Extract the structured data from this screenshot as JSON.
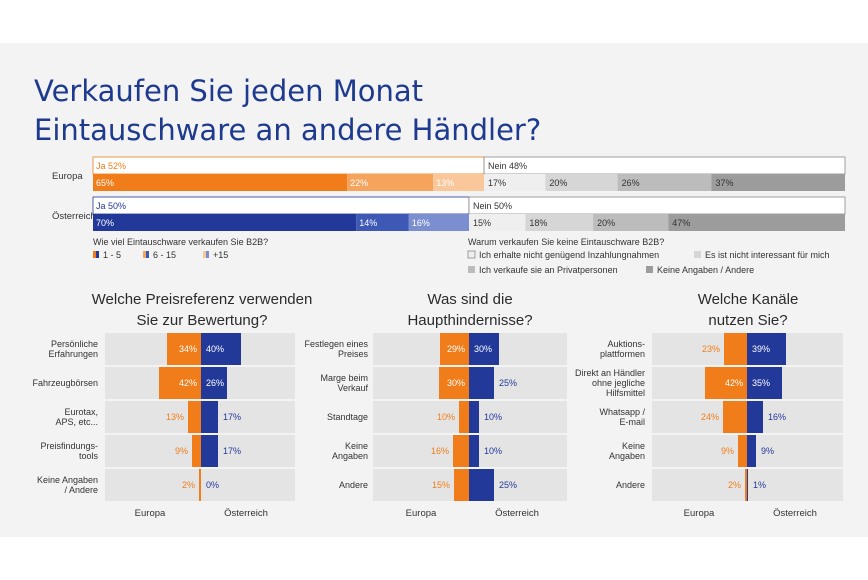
{
  "title": [
    "Verkaufen Sie jeden Monat",
    "Eintauschware an andere Händler?"
  ],
  "colors": {
    "orange": "#f07d1a",
    "orange_mid": "#f5a35d",
    "orange_light": "#f9c799",
    "blue": "#22399a",
    "blue_mid": "#3e58b5",
    "blue_light": "#7a8ed0",
    "grey1": "#efefef",
    "grey2": "#d6d6d6",
    "grey3": "#bcbcbc",
    "grey4": "#9c9c9c",
    "band_bg": "#e4e4e4",
    "title": "#1e3a8f"
  },
  "chart_data": [
    {
      "type": "bar",
      "orientation": "horizontal-stacked",
      "rows": [
        {
          "name": "Europa",
          "ja": {
            "label": "Ja 52%",
            "value": 52,
            "segments": [
              {
                "label": "65%",
                "value": 65
              },
              {
                "label": "22%",
                "value": 22
              },
              {
                "label": "13%",
                "value": 13
              }
            ]
          },
          "nein": {
            "label": "Nein 48%",
            "value": 48,
            "segments": [
              {
                "label": "17%",
                "value": 17
              },
              {
                "label": "20%",
                "value": 20
              },
              {
                "label": "26%",
                "value": 26
              },
              {
                "label": "37%",
                "value": 37
              }
            ]
          }
        },
        {
          "name": "Österreich",
          "ja": {
            "label": "Ja 50%",
            "value": 50,
            "segments": [
              {
                "label": "70%",
                "value": 70
              },
              {
                "label": "14%",
                "value": 14
              },
              {
                "label": "16%",
                "value": 16
              }
            ]
          },
          "nein": {
            "label": "Nein 50%",
            "value": 50,
            "segments": [
              {
                "label": "15%",
                "value": 15
              },
              {
                "label": "18%",
                "value": 18
              },
              {
                "label": "20%",
                "value": 20
              },
              {
                "label": "47%",
                "value": 47
              }
            ]
          }
        }
      ],
      "legend_ja": {
        "title": "Wie viel Eintauschware verkaufen Sie B2B?",
        "items": [
          "1 - 5",
          "6 - 15",
          "+15"
        ]
      },
      "legend_nein": {
        "title": "Warum verkaufen Sie keine Eintauschware B2B?",
        "items": [
          "Ich erhalte nicht genügend Inzahlungnahmen",
          "Es ist nicht interessant für mich",
          "Ich verkaufe sie an Privatpersonen",
          "Keine Angaben / Andere"
        ]
      }
    },
    {
      "type": "bar",
      "orientation": "butterfly",
      "title": [
        "Welche Preisreferenz verwenden",
        "Sie zur Bewertung?"
      ],
      "series_names": [
        "Europa",
        "Österreich"
      ],
      "categories": [
        [
          "Persönliche",
          "Erfahrungen"
        ],
        [
          "Fahrzeugbörsen"
        ],
        [
          "Eurotax,",
          "APS, etc..."
        ],
        [
          "Preisfindungs-",
          "tools"
        ],
        [
          "Keine Angaben",
          "/ Andere"
        ]
      ],
      "europa": [
        34,
        42,
        13,
        9,
        2
      ],
      "oesterreich": [
        40,
        26,
        17,
        17,
        0
      ],
      "europa_labels": [
        "34%",
        "42%",
        "13%",
        "9%",
        "2%"
      ],
      "oesterreich_labels": [
        "40%",
        "26%",
        "17%",
        "17%",
        "0%"
      ]
    },
    {
      "type": "bar",
      "orientation": "butterfly",
      "title": [
        "Was sind die",
        "Haupthindernisse?"
      ],
      "series_names": [
        "Europa",
        "Österreich"
      ],
      "categories": [
        [
          "Festlegen eines",
          "Preises"
        ],
        [
          "Marge beim",
          "Verkauf"
        ],
        [
          "Standtage"
        ],
        [
          "Keine",
          "Angaben"
        ],
        [
          "Andere"
        ]
      ],
      "europa": [
        29,
        30,
        10,
        16,
        15
      ],
      "oesterreich": [
        30,
        25,
        10,
        10,
        25
      ],
      "europa_labels": [
        "29%",
        "30%",
        "10%",
        "16%",
        "15%"
      ],
      "oesterreich_labels": [
        "30%",
        "25%",
        "10%",
        "10%",
        "25%"
      ]
    },
    {
      "type": "bar",
      "orientation": "butterfly",
      "title": [
        "Welche Kanäle",
        "nutzen Sie?"
      ],
      "series_names": [
        "Europa",
        "Österreich"
      ],
      "categories": [
        [
          "Auktions-",
          "plattformen"
        ],
        [
          "Direkt an Händler",
          "ohne jegliche",
          "Hilfsmittel"
        ],
        [
          "Whatsapp /",
          "E-mail"
        ],
        [
          "Keine",
          "Angaben"
        ],
        [
          "Andere"
        ]
      ],
      "europa": [
        23,
        42,
        24,
        9,
        2
      ],
      "oesterreich": [
        39,
        35,
        16,
        9,
        1
      ],
      "europa_labels": [
        "23%",
        "42%",
        "24%",
        "9%",
        "2%"
      ],
      "oesterreich_labels": [
        "39%",
        "35%",
        "16%",
        "9%",
        "1%"
      ]
    }
  ]
}
